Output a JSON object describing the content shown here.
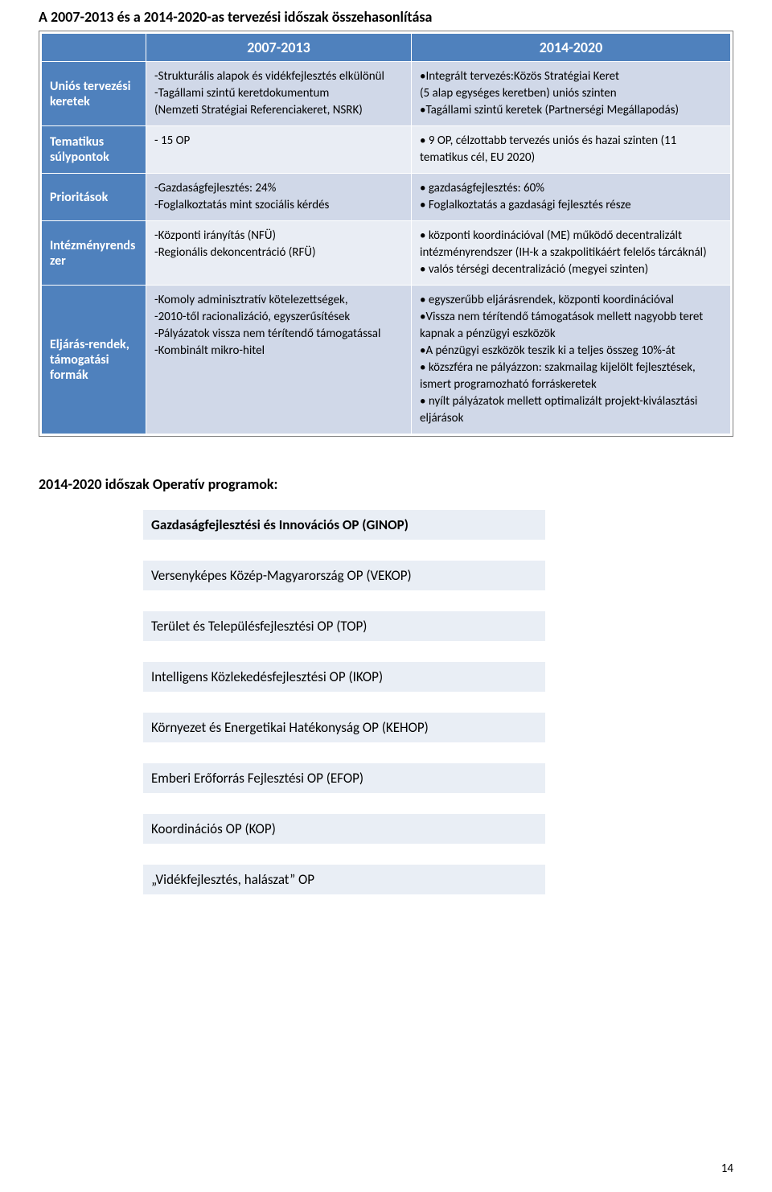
{
  "title": "A 2007-2013 és a 2014-2020-as tervezési időszak összehasonlítása",
  "comparison": {
    "headers": {
      "col1": "2007-2013",
      "col2": "2014-2020"
    },
    "rows": [
      {
        "label": "Uniós tervezési keretek",
        "c1": "-Strukturális alapok és vidékfejlesztés elkülönül\n-Tagállami szintű keretdokumentum\n(Nemzeti Stratégiai Referenciakeret, NSRK)",
        "c2": "•Integrált tervezés:Közös Stratégiai Keret\n(5 alap egységes keretben) uniós szinten\n•Tagállami szintű keretek (Partnerségi Megállapodás)"
      },
      {
        "label": "Tematikus súlypontok",
        "c1": "- 15 OP",
        "c2": "• 9 OP, célzottabb tervezés uniós és hazai szinten (11 tematikus cél, EU 2020)"
      },
      {
        "label": "Prioritások",
        "c1": "-Gazdaságfejlesztés: 24%\n-Foglalkoztatás mint szociális kérdés",
        "c2": "• gazdaságfejlesztés: 60%\n• Foglalkoztatás a gazdasági fejlesztés része"
      },
      {
        "label": "Intézményrendszer",
        "c1": "-Központi irányítás (NFÜ)\n-Regionális dekoncentráció (RFÜ)",
        "c2": "• központi koordinációval (ME) működő decentralizált intézményrendszer (IH-k a szakpolitikáért felelős tárcáknál)\n• valós térségi decentralizáció (megyei szinten)"
      },
      {
        "label": "Eljárás-rendek, támogatási formák",
        "c1": "-Komoly adminisztratív kötelezettségek,\n-2010-től racionalizáció, egyszerűsítések\n-Pályázatok vissza nem térítendő támogatással\n-Kombinált mikro-hitel",
        "c2": "• egyszerűbb eljárásrendek, központi koordinációval\n•Vissza nem térítendő támogatások mellett nagyobb teret kapnak a pénzügyi eszközök\n•A pénzügyi eszközök teszik ki a teljes összeg 10%-át\n• közszféra ne pályázzon: szakmailag kijelölt fejlesztések, ismert programozható forráskeretek\n• nyílt pályázatok mellett optimalizált projekt-kiválasztási eljárások"
      }
    ]
  },
  "section2_title": "2014-2020 időszak Operatív programok:",
  "ops": [
    "Gazdaságfejlesztési és Innovációs  OP (GINOP)",
    "Versenyképes Közép-Magyarország OP (VEKOP)",
    "Terület és Településfejlesztési OP (TOP)",
    "Intelligens Közlekedésfejlesztési OP (IKOP)",
    "Környezet és Energetikai Hatékonyság OP (KEHOP)",
    "Emberi Erőforrás Fejlesztési OP (EFOP)",
    "Koordinációs OP (KOP)",
    "„Vidékfejlesztés, halászat” OP"
  ],
  "page_number": "14"
}
